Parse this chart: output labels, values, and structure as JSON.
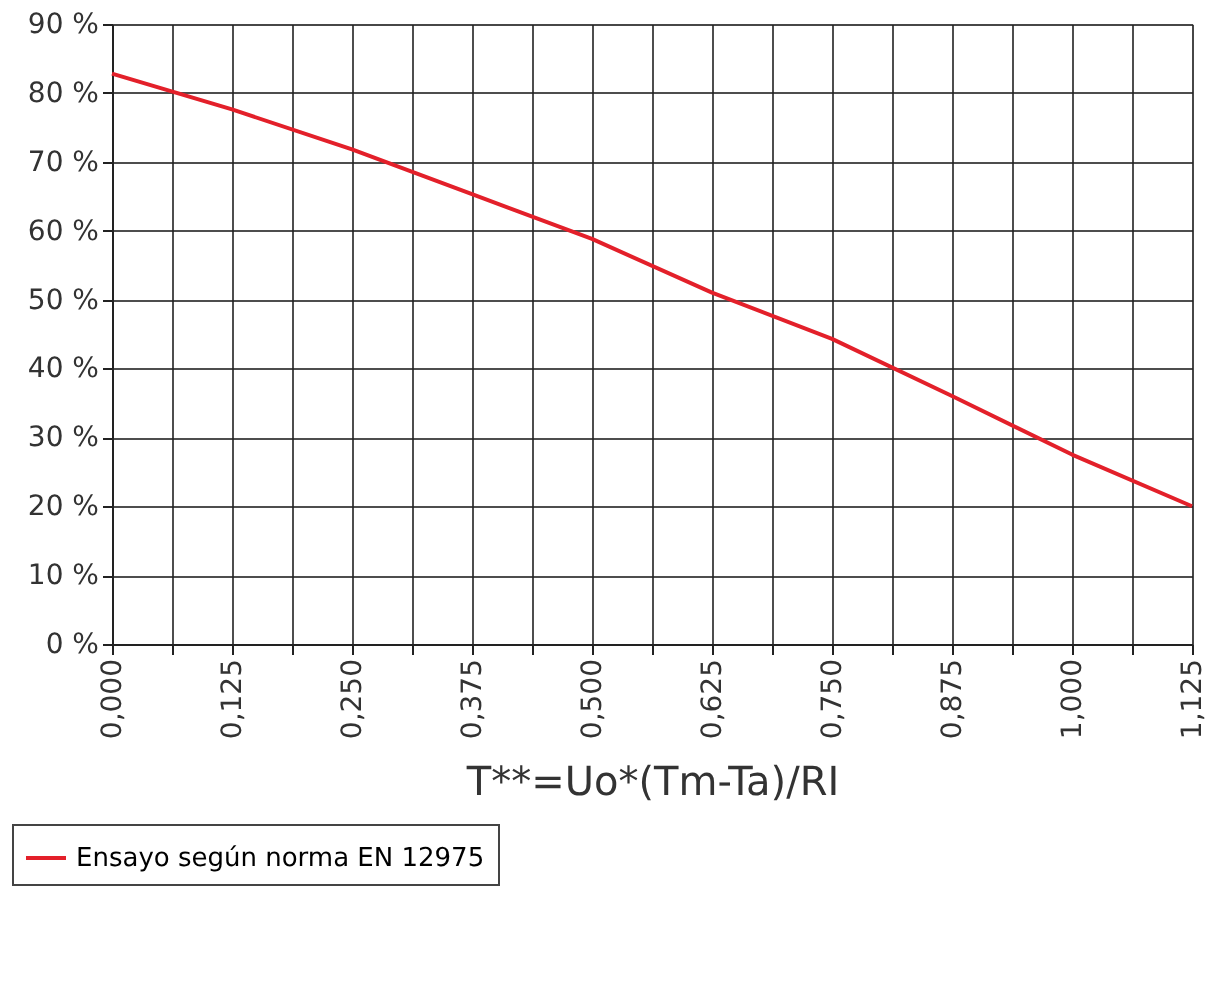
{
  "chart_data": {
    "type": "line",
    "xlabel": "T**=Uo*(Tm-Ta)/RI",
    "x": [
      0,
      0.125,
      0.25,
      0.375,
      0.5,
      0.625,
      0.75,
      0.875,
      1.0,
      1.125
    ],
    "series": [
      {
        "name": "Ensayo según norma EN 12975",
        "color": "#e3202a",
        "values": [
          82.8,
          77.6,
          71.8,
          65.3,
          58.8,
          51,
          44.3,
          36,
          27.5,
          20
        ]
      }
    ],
    "xlim": [
      0,
      1.125
    ],
    "xticks": [
      {
        "value": 0,
        "label": "0,000"
      },
      {
        "value": 0.0625,
        "label": null
      },
      {
        "value": 0.125,
        "label": "0,125"
      },
      {
        "value": 0.1875,
        "label": null
      },
      {
        "value": 0.25,
        "label": "0,250"
      },
      {
        "value": 0.3125,
        "label": null
      },
      {
        "value": 0.375,
        "label": "0,375"
      },
      {
        "value": 0.4375,
        "label": null
      },
      {
        "value": 0.5,
        "label": "0,500"
      },
      {
        "value": 0.5625,
        "label": null
      },
      {
        "value": 0.625,
        "label": "0,625"
      },
      {
        "value": 0.6875,
        "label": null
      },
      {
        "value": 0.75,
        "label": "0,750"
      },
      {
        "value": 0.8125,
        "label": null
      },
      {
        "value": 0.875,
        "label": "0,875"
      },
      {
        "value": 0.9375,
        "label": null
      },
      {
        "value": 1.0,
        "label": "1,000"
      },
      {
        "value": 1.0625,
        "label": null
      },
      {
        "value": 1.125,
        "label": "1,125"
      }
    ],
    "ylim": [
      0,
      90
    ],
    "yticks": [
      {
        "value": 0,
        "label": "0 %"
      },
      {
        "value": 10,
        "label": "10 %"
      },
      {
        "value": 20,
        "label": "20 %"
      },
      {
        "value": 30,
        "label": "30 %"
      },
      {
        "value": 40,
        "label": "40 %"
      },
      {
        "value": 50,
        "label": "50 %"
      },
      {
        "value": 60,
        "label": "60 %"
      },
      {
        "value": 70,
        "label": "70 %"
      },
      {
        "value": 80,
        "label": "80 %"
      },
      {
        "value": 90,
        "label": "90 %"
      }
    ],
    "grid": true,
    "legend": "bottom left",
    "marker": "none",
    "line_style": "solid"
  }
}
